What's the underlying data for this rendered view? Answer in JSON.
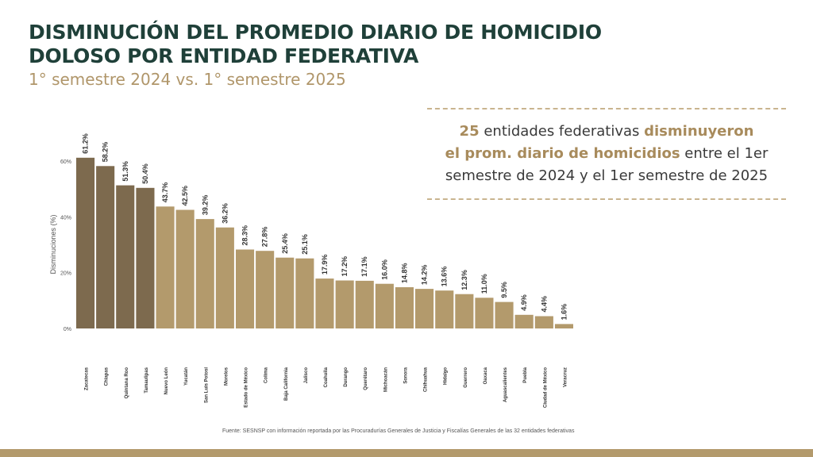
{
  "title": "DISMINUCIÓN DEL PROMEDIO DIARIO DE HOMICIDIO DOLOSO POR ENTIDAD FEDERATIVA",
  "subtitle": "1° semestre 2024 vs. 1° semestre 2025",
  "callout": {
    "count": "25",
    "part1": " entidades federativas ",
    "highlight1": "disminuyeron",
    "highlight2": "el prom. diario de homicidios",
    "part2": " entre el 1er semestre de 2024 y el 1er semestre de 2025"
  },
  "source": "Fuente: SESNSP con información reportada por las Procuradurías Generales de Justicia y Fiscalías Generales de las 32 entidades federativas",
  "colors": {
    "dark": "#7d6a4e",
    "light": "#b39a6c",
    "title": "#1f4039",
    "accent": "#b0966a"
  },
  "chart_data": {
    "type": "bar",
    "ylabel": "Disminuciones (%)",
    "ylim": [
      0,
      60
    ],
    "yticks": [
      0,
      20,
      40,
      60
    ],
    "ytick_labels": [
      "0%",
      "20%",
      "40%",
      "60%"
    ],
    "categories": [
      "Zacatecas",
      "Chiapas",
      "Quintana Roo",
      "Tamaulipas",
      "Nuevo León",
      "Yucatán",
      "San Luis Potosí",
      "Morelos",
      "Estado de México",
      "Colima",
      "Baja California",
      "Jalisco",
      "Coahuila",
      "Durango",
      "Querétaro",
      "Michoacán",
      "Sonora",
      "Chihuahua",
      "Hidalgo",
      "Guerrero",
      "Oaxaca",
      "Aguascalientes",
      "Puebla",
      "Ciudad de México",
      "Veracruz"
    ],
    "values": [
      61.2,
      58.2,
      51.3,
      50.4,
      43.7,
      42.5,
      39.2,
      36.2,
      28.3,
      27.8,
      25.4,
      25.1,
      17.9,
      17.2,
      17.1,
      16.0,
      14.8,
      14.2,
      13.6,
      12.3,
      11.0,
      9.5,
      4.9,
      4.4,
      1.6
    ],
    "labels": [
      "61.2%",
      "58.2%",
      "51.3%",
      "50.4%",
      "43.7%",
      "42.5%",
      "39.2%",
      "36.2%",
      "28.3%",
      "27.8%",
      "25.4%",
      "25.1%",
      "17.9%",
      "17.2%",
      "17.1%",
      "16.0%",
      "14.8%",
      "14.2%",
      "13.6%",
      "12.3%",
      "11.0%",
      "9.5%",
      "4.9%",
      "4.4%",
      "1.6%"
    ],
    "highlighted_count": 4
  }
}
